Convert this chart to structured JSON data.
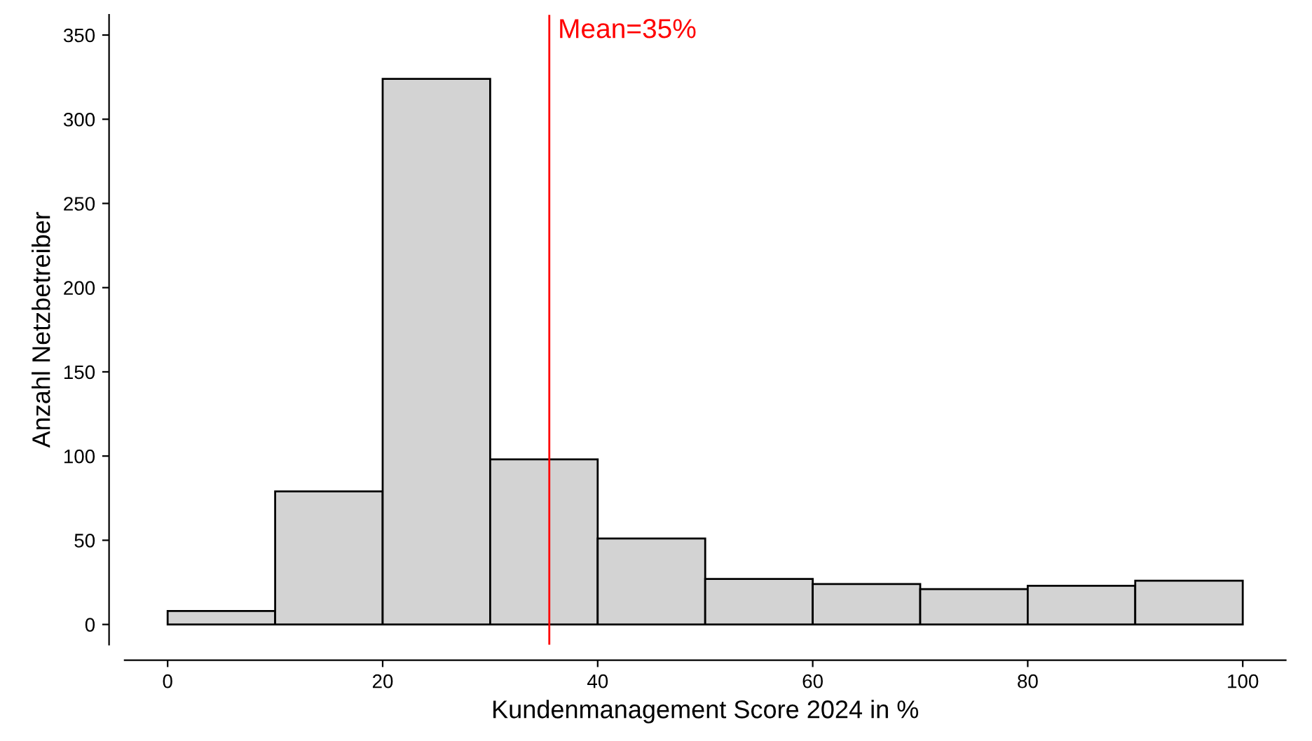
{
  "chart_data": {
    "type": "histogram",
    "xlabel": "Kundenmanagement Score 2024 in %",
    "ylabel": "Anzahl Netzbetreiber",
    "bins": [
      0,
      10,
      20,
      30,
      40,
      50,
      60,
      70,
      80,
      90,
      100
    ],
    "values": [
      8,
      79,
      324,
      98,
      51,
      27,
      24,
      21,
      23,
      26
    ],
    "color": "#d3d3d3",
    "xlim": [
      -4,
      104
    ],
    "ylim": [
      -12,
      362
    ],
    "xticks": [
      0,
      20,
      40,
      60,
      80,
      100
    ],
    "yticks": [
      0,
      50,
      100,
      150,
      200,
      250,
      300,
      350
    ],
    "grid": false,
    "legend": false,
    "ref_lines": [
      {
        "axis": "x",
        "value": 35.5,
        "label": "Mean=35%",
        "color": "#ff0000"
      }
    ]
  }
}
